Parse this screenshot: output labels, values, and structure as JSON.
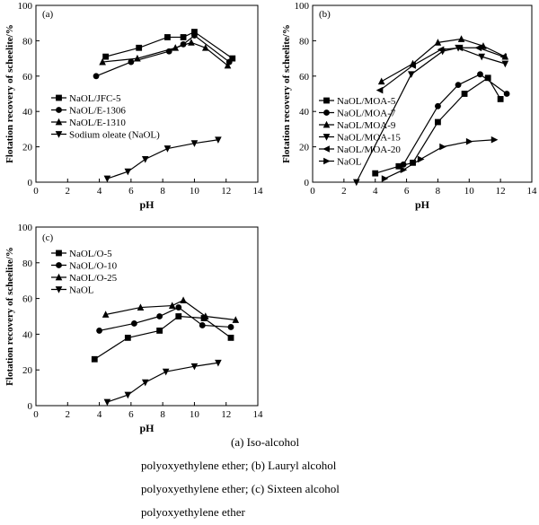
{
  "chart_data": [
    {
      "type": "line",
      "panel_label": "(a)",
      "xlabel": "pH",
      "ylabel": "Flotation recovery of scheelite/%",
      "xlim": [
        0,
        14
      ],
      "ylim": [
        0,
        100
      ],
      "xticks": [
        0,
        2,
        4,
        6,
        8,
        10,
        12,
        14
      ],
      "yticks": [
        0,
        20,
        40,
        60,
        80,
        100
      ],
      "legend_position": "center-left",
      "series": [
        {
          "name": "NaOL/JFC-5",
          "marker": "square",
          "x": [
            4.4,
            6.5,
            8.3,
            9.3,
            10.0,
            12.4
          ],
          "y": [
            71,
            76,
            82,
            82,
            85,
            70
          ]
        },
        {
          "name": "NaOL/E-1306",
          "marker": "circle",
          "x": [
            3.8,
            6.0,
            8.4,
            9.3,
            10.0,
            12.2
          ],
          "y": [
            60,
            68,
            74,
            78,
            83,
            68
          ]
        },
        {
          "name": "NaOL/E-1310",
          "marker": "triangle-up",
          "x": [
            4.2,
            6.4,
            8.8,
            9.8,
            10.7,
            12.1
          ],
          "y": [
            68,
            70,
            76,
            79,
            76,
            66
          ]
        },
        {
          "name": "Sodium oleate (NaOL)",
          "marker": "triangle-down",
          "x": [
            4.5,
            5.8,
            6.9,
            8.3,
            10.0,
            11.5
          ],
          "y": [
            2,
            6,
            13,
            19,
            22,
            24
          ]
        }
      ]
    },
    {
      "type": "line",
      "panel_label": "(b)",
      "xlabel": "pH",
      "ylabel": "Flotation recovery of scheelite/%",
      "xlim": [
        0,
        14
      ],
      "ylim": [
        0,
        100
      ],
      "xticks": [
        0,
        2,
        4,
        6,
        8,
        10,
        12,
        14
      ],
      "yticks": [
        0,
        20,
        40,
        60,
        80,
        100
      ],
      "legend_position": "center-left",
      "series": [
        {
          "name": "NaOL/MOA-5",
          "marker": "square",
          "x": [
            4.0,
            5.5,
            6.4,
            8.0,
            9.7,
            11.2,
            12.0
          ],
          "y": [
            5,
            9,
            11,
            34,
            50,
            59,
            47
          ]
        },
        {
          "name": "NaOL/MOA-7",
          "marker": "circle",
          "x": [
            5.8,
            8.0,
            9.3,
            10.7,
            12.4
          ],
          "y": [
            10,
            43,
            55,
            61,
            50
          ]
        },
        {
          "name": "NaOL/MOA-9",
          "marker": "triangle-up",
          "x": [
            4.4,
            6.4,
            8.0,
            9.5,
            10.9,
            12.3
          ],
          "y": [
            57,
            67,
            79,
            81,
            77,
            71
          ]
        },
        {
          "name": "NaOL/MOA-15",
          "marker": "triangle-down",
          "x": [
            2.8,
            6.3,
            8.3,
            9.3,
            10.8,
            12.3
          ],
          "y": [
            0,
            61,
            74,
            76,
            71,
            67
          ]
        },
        {
          "name": "NaOL/MOA-20",
          "marker": "triangle-left",
          "x": [
            4.3,
            6.4,
            8.2,
            9.4,
            10.6,
            12.2
          ],
          "y": [
            52,
            66,
            75,
            76,
            76,
            71
          ]
        },
        {
          "name": "NaOL",
          "marker": "triangle-right",
          "x": [
            4.6,
            5.8,
            6.9,
            8.3,
            10.0,
            11.6
          ],
          "y": [
            2,
            7,
            13,
            20,
            23,
            24
          ]
        }
      ]
    },
    {
      "type": "line",
      "panel_label": "(c)",
      "xlabel": "pH",
      "ylabel": "Flotation recovery of scheelite/%",
      "xlim": [
        0,
        14
      ],
      "ylim": [
        0,
        100
      ],
      "xticks": [
        0,
        2,
        4,
        6,
        8,
        10,
        12,
        14
      ],
      "yticks": [
        0,
        20,
        40,
        60,
        80,
        100
      ],
      "legend_position": "upper-left",
      "series": [
        {
          "name": "NaOL/O-5",
          "marker": "square",
          "x": [
            3.7,
            5.8,
            7.8,
            9.0,
            10.6,
            12.3
          ],
          "y": [
            26,
            38,
            42,
            50,
            49,
            38
          ]
        },
        {
          "name": "NaOL/O-10",
          "marker": "circle",
          "x": [
            4.0,
            6.2,
            7.8,
            9.0,
            10.5,
            12.3
          ],
          "y": [
            42,
            46,
            50,
            55,
            45,
            44
          ]
        },
        {
          "name": "NaOL/O-25",
          "marker": "triangle-up",
          "x": [
            4.4,
            6.6,
            8.6,
            9.3,
            10.7,
            12.6
          ],
          "y": [
            51,
            55,
            56,
            59,
            50,
            48
          ]
        },
        {
          "name": "NaOL",
          "marker": "triangle-down",
          "x": [
            4.5,
            5.8,
            6.9,
            8.2,
            10.0,
            11.5
          ],
          "y": [
            2,
            6,
            13,
            19,
            22,
            24
          ]
        }
      ]
    }
  ],
  "caption": {
    "lines": [
      "(a)  Iso-alcohol",
      "polyoxyethylene   ether;   (b)   Lauryl   alcohol",
      "polyoxyethylene   ether;   (c)   Sixteen   alcohol",
      "polyoxyethylene ether"
    ]
  }
}
